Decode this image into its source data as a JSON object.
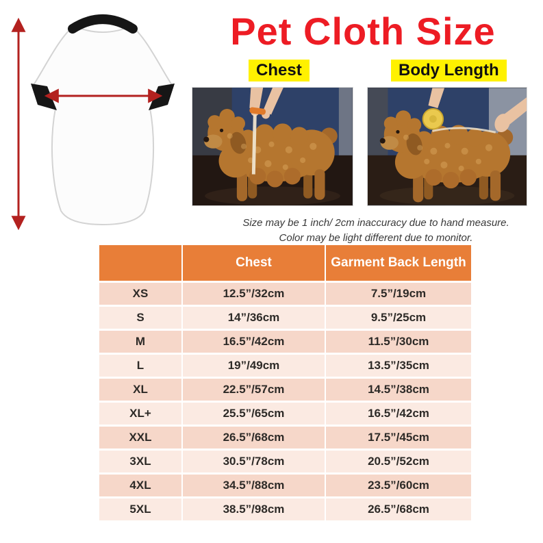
{
  "title": "Pet Cloth Size",
  "labels": {
    "chest": "Chest",
    "body_length": "Body Length"
  },
  "note": {
    "line1": "Size may be 1 inch/ 2cm inaccuracy due to hand measure.",
    "line2": "Color may be light different due to monitor."
  },
  "table": {
    "headers": {
      "size": "",
      "chest": "Chest",
      "back": "Garment Back Length"
    },
    "rows": [
      {
        "size": "XS",
        "chest": "12.5”/32cm",
        "back": "7.5”/19cm"
      },
      {
        "size": "S",
        "chest": "14”/36cm",
        "back": "9.5”/25cm"
      },
      {
        "size": "M",
        "chest": "16.5”/42cm",
        "back": "11.5”/30cm"
      },
      {
        "size": "L",
        "chest": "19”/49cm",
        "back": "13.5”/35cm"
      },
      {
        "size": "XL",
        "chest": "22.5”/57cm",
        "back": "14.5”/38cm"
      },
      {
        "size": "XL+",
        "chest": "25.5”/65cm",
        "back": "16.5”/42cm"
      },
      {
        "size": "XXL",
        "chest": "26.5”/68cm",
        "back": "17.5”/45cm"
      },
      {
        "size": "3XL",
        "chest": "30.5”/78cm",
        "back": "20.5”/52cm"
      },
      {
        "size": "4XL",
        "chest": "34.5”/88cm",
        "back": "23.5”/60cm"
      },
      {
        "size": "5XL",
        "chest": "38.5”/98cm",
        "back": "26.5”/68cm"
      }
    ]
  },
  "icons": {
    "chest_arrow": "horizontal-double-arrow",
    "body_length_arrow": "vertical-double-arrow",
    "shirt": "dog-tshirt-outline",
    "dog": "plush-dog-photo",
    "tape_measure": "round-tape-measure"
  },
  "colors": {
    "title_red": "#ed1c24",
    "highlight_yellow": "#fff100",
    "header_orange": "#e87e38",
    "row_pink_dark": "#f6d7c9",
    "row_pink_light": "#fbeae2",
    "arrow_red": "#b3211f"
  }
}
